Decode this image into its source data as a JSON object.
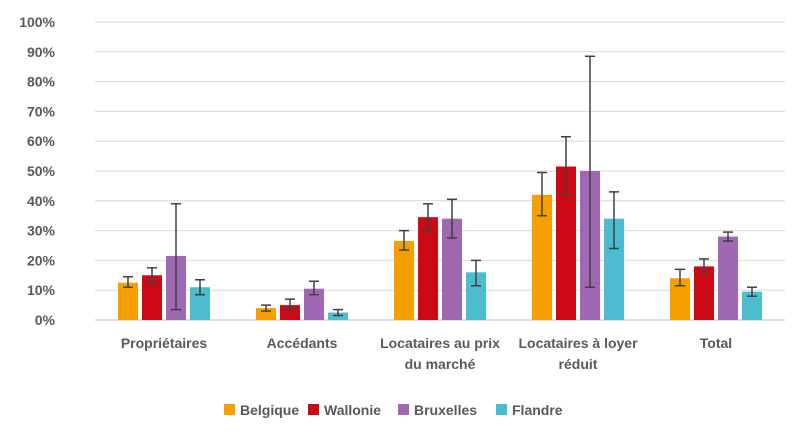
{
  "chart_data": {
    "type": "bar",
    "categories": [
      [
        "Propriétaires"
      ],
      [
        "Accédants"
      ],
      [
        "Locataires au prix",
        "du marché"
      ],
      [
        "Locataires à loyer",
        "réduit"
      ],
      [
        "Total"
      ]
    ],
    "series": [
      {
        "name": "Belgique",
        "color": "#F59F00",
        "values": [
          12.5,
          4.0,
          26.5,
          42.0,
          14.0
        ],
        "err_low": [
          11.0,
          3.0,
          23.5,
          35.0,
          11.5
        ],
        "err_high": [
          14.5,
          5.0,
          30.0,
          49.5,
          17.0
        ]
      },
      {
        "name": "Wallonie",
        "color": "#CC0A16",
        "values": [
          15.0,
          5.0,
          34.5,
          51.5,
          18.0
        ],
        "err_low": [
          12.5,
          3.5,
          30.0,
          42.0,
          16.0
        ],
        "err_high": [
          17.5,
          7.0,
          39.0,
          61.5,
          20.5
        ]
      },
      {
        "name": "Bruxelles",
        "color": "#A068B2",
        "values": [
          21.5,
          10.5,
          34.0,
          50.0,
          28.0
        ],
        "err_low": [
          3.5,
          8.5,
          27.5,
          11.0,
          26.5
        ],
        "err_high": [
          39.0,
          13.0,
          40.5,
          88.5,
          29.5
        ]
      },
      {
        "name": "Flandre",
        "color": "#4BBDCE",
        "values": [
          11.0,
          2.5,
          16.0,
          34.0,
          9.5
        ],
        "err_low": [
          8.5,
          1.5,
          11.5,
          24.0,
          8.0
        ],
        "err_high": [
          13.5,
          3.5,
          20.0,
          43.0,
          11.0
        ]
      }
    ],
    "y_ticks": [
      "0%",
      "10%",
      "20%",
      "30%",
      "40%",
      "50%",
      "60%",
      "70%",
      "80%",
      "90%",
      "100%"
    ],
    "ylim": [
      0,
      100
    ],
    "grid": true,
    "legend": "bottom",
    "title": "",
    "xlabel": "",
    "ylabel": ""
  },
  "colors": {
    "grid": "#D9D9D9",
    "axis": "#BFBFBF",
    "error_bar": "#404040",
    "text": "#595959"
  }
}
